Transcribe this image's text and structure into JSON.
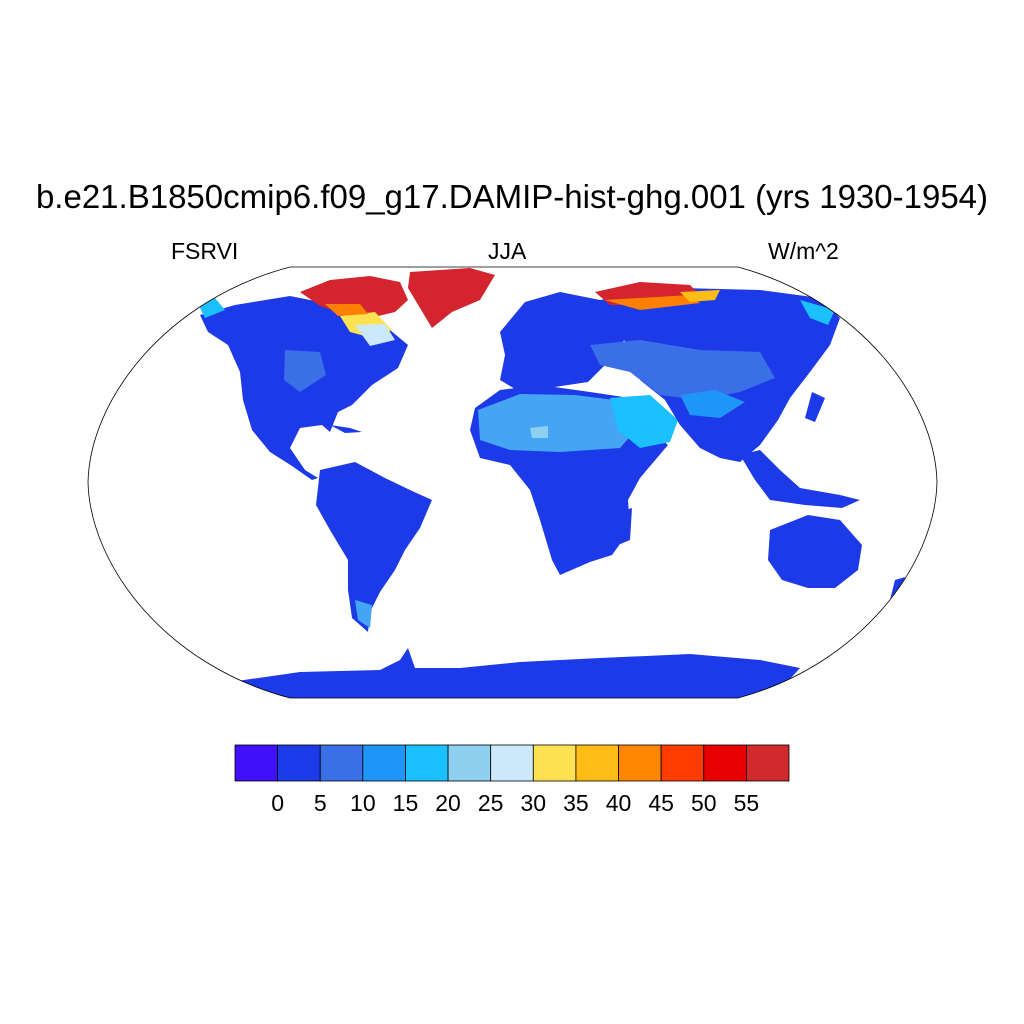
{
  "title": "b.e21.B1850cmip6.f09_g17.DAMIP-hist-ghg.001 (yrs 1930-1954)",
  "left_string": "FSRVI",
  "center_string": "JJA",
  "right_string": "W/m^2",
  "map": {
    "projection": "Robinson (global)",
    "field": "land-only filled contours",
    "ocean": "blank",
    "dominant_band": "0-5",
    "high_value_regions": [
      "Greenland",
      "Canadian Arctic Archipelago",
      "Northern Siberia coast"
    ],
    "intermediate_regions": [
      "Sahara",
      "Arabian Peninsula",
      "Central Asia",
      "Tibetan Plateau"
    ],
    "colors": {
      "land_main": "#1d3ae8",
      "land_mid": "#3b6fe8",
      "desert": "#45a5f5",
      "desert_bright": "#8fd0ff",
      "arctic_hot": "#d4242e",
      "arctic_orange": "#ff7f00",
      "arctic_yellow": "#ffe252",
      "coastline": "#000000"
    }
  },
  "colorbar": {
    "labels": [
      "0",
      "5",
      "10",
      "15",
      "20",
      "25",
      "30",
      "35",
      "40",
      "45",
      "50",
      "55"
    ],
    "colors": [
      "#4010f8",
      "#1d3ae8",
      "#3b6fe8",
      "#1e95f8",
      "#1ac0ff",
      "#8fcff0",
      "#cce8fb",
      "#ffe252",
      "#ffbc14",
      "#ff8600",
      "#ff3c00",
      "#e80000",
      "#d22a2c"
    ]
  }
}
